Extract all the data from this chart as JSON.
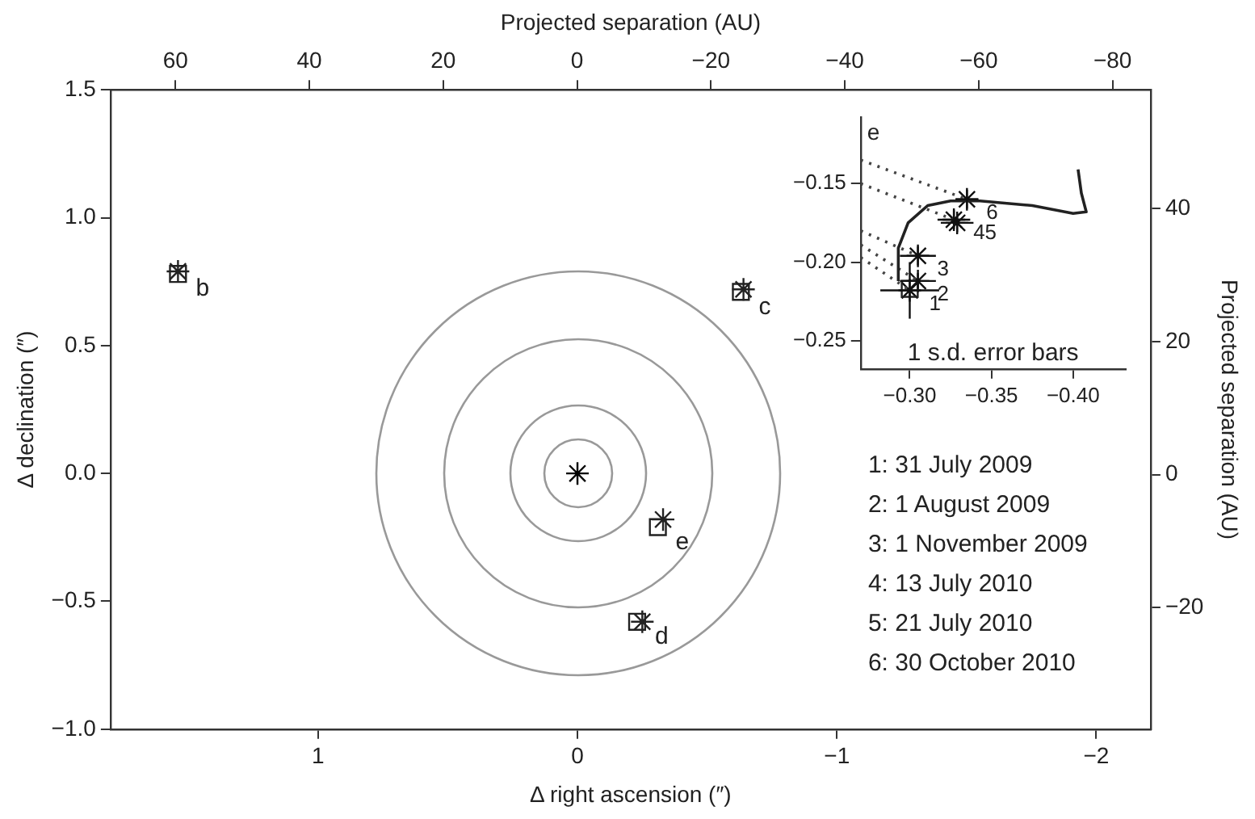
{
  "chart_data": [
    {
      "type": "scatter",
      "xlabel": "Δ right ascension (″)",
      "ylabel": "Δ declination (″)",
      "x2label": "Projected separation (AU)",
      "y2label": "Projected separation (AU)",
      "xlim": [
        1.8,
        -2.21
      ],
      "xticks": [
        1,
        0,
        {
          "value": -1,
          "label": "−1"
        },
        {
          "value": -2,
          "label": "−2"
        }
      ],
      "ylim": [
        -1,
        1.5
      ],
      "yticks": [
        {
          "value": -1,
          "label": "−1.0"
        },
        {
          "value": -0.5,
          "label": "−0.5"
        },
        {
          "value": 0,
          "label": "0.0"
        },
        0.5,
        {
          "value": 1,
          "label": "1.0"
        },
        1.5
      ],
      "x2lim": [
        69.7,
        -85.7
      ],
      "x2ticks": [
        60,
        40,
        20,
        0,
        {
          "value": -20,
          "label": "−20"
        },
        {
          "value": -40,
          "label": "−40"
        },
        {
          "value": -60,
          "label": "−60"
        },
        {
          "value": -80,
          "label": "−80"
        }
      ],
      "y2lim": [
        -38.3,
        57.9
      ],
      "y2ticks": [
        {
          "value": -20,
          "label": "−20"
        },
        0,
        20,
        40
      ],
      "grid": false,
      "legend": false,
      "series": [
        {
          "type": "scatter",
          "marker": "cross",
          "color": "#000000",
          "x": [
            0
          ],
          "values": [
            0
          ]
        },
        {
          "type": "scatter",
          "marker": "square",
          "color": "#222222",
          "x": [
            1.54,
            -0.63,
            -0.23,
            -0.31
          ],
          "values": [
            0.78,
            0.71,
            -0.58,
            -0.21
          ]
        },
        {
          "type": "scatter",
          "marker": "cross",
          "color": "#222222",
          "x": [
            1.54,
            -0.64,
            -0.25,
            -0.33
          ],
          "values": [
            0.79,
            0.72,
            -0.58,
            -0.18
          ]
        }
      ],
      "annotations": [
        {
          "text": "b",
          "x": 1.54,
          "y": 0.78
        },
        {
          "text": "c",
          "x": -0.63,
          "y": 0.71
        },
        {
          "text": "d",
          "x": -0.23,
          "y": -0.58
        },
        {
          "text": "e",
          "x": -0.31,
          "y": -0.21
        },
        "1: 31 July 2009",
        "2: 1 August 2009",
        "3: 1 November 2009",
        "4: 13 July 2010",
        "5: 21 July 2010",
        "6: 30 October 2010"
      ]
    },
    {
      "type": "scatter",
      "title": "e",
      "xlim": [
        -0.27,
        -0.432
      ],
      "xticks": [
        {
          "value": -0.3,
          "label": "−0.30"
        },
        {
          "value": -0.35,
          "label": "−0.35"
        },
        {
          "value": -0.4,
          "label": "−0.40"
        }
      ],
      "ylim": [
        -0.268,
        -0.108
      ],
      "yticks": [
        {
          "value": -0.15,
          "label": "−0.15"
        },
        {
          "value": -0.2,
          "label": "−0.20"
        },
        {
          "value": -0.25,
          "label": "−0.25"
        }
      ],
      "grid": false,
      "legend": false,
      "series": [
        {
          "type": "line",
          "marker": "none",
          "color": "#222222",
          "x": [
            -0.293,
            -0.293,
            -0.299,
            -0.311,
            -0.325,
            -0.343,
            -0.375,
            -0.4,
            -0.408,
            -0.405,
            -0.403
          ],
          "values": [
            -0.212,
            -0.191,
            -0.175,
            -0.164,
            -0.161,
            -0.161,
            -0.164,
            -0.169,
            -0.168,
            -0.156,
            -0.141
          ]
        },
        {
          "type": "line",
          "marker": "none",
          "line_style": "dotted",
          "color": "#444444",
          "x": [
            -0.27,
            -0.335
          ],
          "values": [
            -0.135,
            -0.16
          ]
        },
        {
          "type": "line",
          "marker": "none",
          "line_style": "dotted",
          "color": "#444444",
          "x": [
            -0.27,
            -0.327
          ],
          "values": [
            -0.15,
            -0.173
          ]
        },
        {
          "type": "line",
          "marker": "none",
          "line_style": "dotted",
          "color": "#444444",
          "x": [
            -0.27,
            -0.305
          ],
          "values": [
            -0.18,
            -0.196
          ]
        },
        {
          "type": "line",
          "marker": "none",
          "line_style": "dotted",
          "color": "#444444",
          "x": [
            -0.27,
            -0.305
          ],
          "values": [
            -0.189,
            -0.212
          ]
        },
        {
          "type": "line",
          "marker": "none",
          "line_style": "dotted",
          "color": "#444444",
          "x": [
            -0.27,
            -0.3
          ],
          "values": [
            -0.197,
            -0.218
          ]
        },
        {
          "type": "scatter",
          "marker": "square",
          "color": "#222222",
          "x": [
            -0.3
          ],
          "values": [
            -0.217
          ]
        },
        {
          "type": "scatter",
          "marker": "cross",
          "color": "#111111",
          "x": [
            -0.3,
            -0.305,
            -0.305,
            -0.327,
            -0.329,
            -0.335
          ],
          "values": [
            -0.218,
            -0.212,
            -0.196,
            -0.173,
            -0.175,
            -0.16
          ],
          "errors": [
            0.018,
            0.005,
            0.006,
            0.006,
            0.006,
            0.006
          ],
          "xerrors": [
            0.018,
            0.011,
            0.011,
            0.01,
            0.01,
            0.007
          ]
        }
      ],
      "annotations": [
        {
          "text": "1",
          "x": -0.3,
          "y": -0.218
        },
        {
          "text": "2",
          "x": -0.305,
          "y": -0.212
        },
        {
          "text": "3",
          "x": -0.305,
          "y": -0.196
        },
        {
          "text": "45",
          "x": -0.327,
          "y": -0.173
        },
        {
          "text": "6",
          "x": -0.335,
          "y": -0.16
        },
        "1 s.d. error bars"
      ]
    }
  ]
}
